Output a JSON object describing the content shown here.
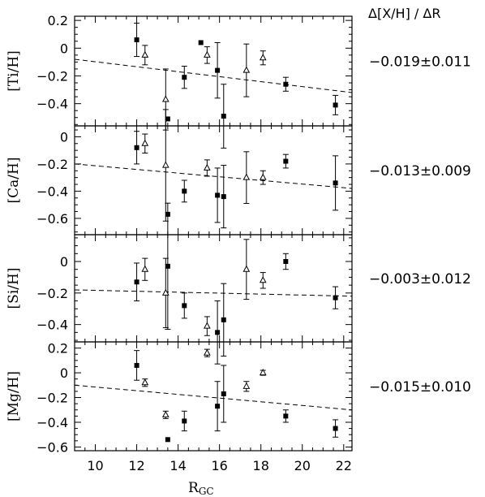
{
  "header": {
    "title": "Δ[X/H] / ΔR"
  },
  "xaxis": {
    "label_main": "R",
    "label_sub": "GC",
    "ticks": [
      "10",
      "12",
      "14",
      "16",
      "18",
      "20",
      "22"
    ]
  },
  "chart_data": [
    {
      "type": "scatter",
      "ylabel": "[Ti/H]",
      "slope_label": "−0.019±0.011",
      "xlim": [
        9,
        22.4
      ],
      "ylim": [
        -0.56,
        0.23
      ],
      "yticks": [
        0.2,
        0,
        -0.2,
        -0.4
      ],
      "ytick_labels": [
        "0.2",
        "0",
        "−0.2",
        "−0.4"
      ],
      "fit": {
        "x": [
          9,
          22.4
        ],
        "y": [
          -0.08,
          -0.32
        ]
      },
      "series": [
        {
          "marker": "filled-square",
          "points": [
            {
              "x": 12.0,
              "y": 0.06,
              "err": 0.12
            },
            {
              "x": 13.5,
              "y": -0.51,
              "err": 0
            },
            {
              "x": 14.3,
              "y": -0.21,
              "err": 0.08
            },
            {
              "x": 15.1,
              "y": 0.04,
              "err": 0
            },
            {
              "x": 15.9,
              "y": -0.16,
              "err": 0.2
            },
            {
              "x": 16.2,
              "y": -0.49,
              "err": 0.23
            },
            {
              "x": 19.2,
              "y": -0.26,
              "err": 0.05
            },
            {
              "x": 21.6,
              "y": -0.41,
              "err": 0.07
            }
          ]
        },
        {
          "marker": "open-triangle",
          "points": [
            {
              "x": 12.4,
              "y": -0.05,
              "err": 0.07
            },
            {
              "x": 13.4,
              "y": -0.37,
              "err": 0.22
            },
            {
              "x": 15.4,
              "y": -0.05,
              "err": 0.06
            },
            {
              "x": 17.3,
              "y": -0.16,
              "err": 0.19
            },
            {
              "x": 18.1,
              "y": -0.07,
              "err": 0.05
            }
          ]
        }
      ]
    },
    {
      "type": "scatter",
      "ylabel": "[Ca/H]",
      "slope_label": "−0.013±0.009",
      "xlim": [
        9,
        22.4
      ],
      "ylim": [
        -0.72,
        0.08
      ],
      "yticks": [
        0,
        -0.2,
        -0.4,
        -0.6
      ],
      "ytick_labels": [
        "0",
        "−0.2",
        "−0.4",
        "−0.6"
      ],
      "fit": {
        "x": [
          9,
          22.4
        ],
        "y": [
          -0.2,
          -0.38
        ]
      },
      "series": [
        {
          "marker": "filled-square",
          "points": [
            {
              "x": 12.0,
              "y": -0.08,
              "err": 0.12
            },
            {
              "x": 13.5,
              "y": -0.57,
              "err": 0
            },
            {
              "x": 14.3,
              "y": -0.4,
              "err": 0.08
            },
            {
              "x": 15.9,
              "y": -0.43,
              "err": 0.2
            },
            {
              "x": 16.2,
              "y": -0.44,
              "err": 0.23
            },
            {
              "x": 19.2,
              "y": -0.18,
              "err": 0.05
            },
            {
              "x": 21.6,
              "y": -0.34,
              "err": 0.2
            }
          ]
        },
        {
          "marker": "open-triangle",
          "points": [
            {
              "x": 12.4,
              "y": -0.05,
              "err": 0.07
            },
            {
              "x": 13.4,
              "y": -0.21,
              "err": 0.41
            },
            {
              "x": 15.4,
              "y": -0.23,
              "err": 0.06
            },
            {
              "x": 17.3,
              "y": -0.3,
              "err": 0.19
            },
            {
              "x": 18.1,
              "y": -0.3,
              "err": 0.05
            }
          ]
        }
      ]
    },
    {
      "type": "scatter",
      "ylabel": "[Si/H]",
      "slope_label": "−0.003±0.012",
      "xlim": [
        9,
        22.4
      ],
      "ylim": [
        -0.51,
        0.17
      ],
      "yticks": [
        0,
        -0.2,
        -0.4
      ],
      "ytick_labels": [
        "0",
        "−0.2",
        "−0.4"
      ],
      "fit": {
        "x": [
          9,
          22.4
        ],
        "y": [
          -0.18,
          -0.22
        ]
      },
      "series": [
        {
          "marker": "filled-square",
          "points": [
            {
              "x": 12.0,
              "y": -0.13,
              "err": 0.12
            },
            {
              "x": 13.5,
              "y": -0.03,
              "err": 0.4
            },
            {
              "x": 14.3,
              "y": -0.28,
              "err": 0.08
            },
            {
              "x": 15.9,
              "y": -0.45,
              "err": 0.2
            },
            {
              "x": 16.2,
              "y": -0.37,
              "err": 0.23
            },
            {
              "x": 19.2,
              "y": 0.0,
              "err": 0.05
            },
            {
              "x": 21.6,
              "y": -0.23,
              "err": 0.07
            }
          ]
        },
        {
          "marker": "open-triangle",
          "points": [
            {
              "x": 12.4,
              "y": -0.05,
              "err": 0.07
            },
            {
              "x": 13.4,
              "y": -0.2,
              "err": 0.22
            },
            {
              "x": 15.4,
              "y": -0.41,
              "err": 0.06
            },
            {
              "x": 17.3,
              "y": -0.05,
              "err": 0.19
            },
            {
              "x": 18.1,
              "y": -0.12,
              "err": 0.05
            }
          ]
        }
      ]
    },
    {
      "type": "scatter",
      "ylabel": "[Mg/H]",
      "slope_label": "−0.015±0.010",
      "xlim": [
        9,
        22.4
      ],
      "ylim": [
        -0.63,
        0.25
      ],
      "yticks": [
        0.2,
        0,
        -0.2,
        -0.4,
        -0.6
      ],
      "ytick_labels": [
        "0.2",
        "0",
        "−0.2",
        "−0.4",
        "−0.6"
      ],
      "fit": {
        "x": [
          9,
          22.4
        ],
        "y": [
          -0.1,
          -0.3
        ]
      },
      "series": [
        {
          "marker": "filled-square",
          "points": [
            {
              "x": 12.0,
              "y": 0.06,
              "err": 0.12
            },
            {
              "x": 13.5,
              "y": -0.54,
              "err": 0
            },
            {
              "x": 14.3,
              "y": -0.39,
              "err": 0.08
            },
            {
              "x": 15.9,
              "y": -0.27,
              "err": 0.2
            },
            {
              "x": 16.2,
              "y": -0.17,
              "err": 0.23
            },
            {
              "x": 19.2,
              "y": -0.35,
              "err": 0.05
            },
            {
              "x": 21.6,
              "y": -0.45,
              "err": 0.07
            }
          ]
        },
        {
          "marker": "open-triangle",
          "points": [
            {
              "x": 12.4,
              "y": -0.08,
              "err": 0.03
            },
            {
              "x": 13.4,
              "y": -0.34,
              "err": 0.03
            },
            {
              "x": 15.4,
              "y": 0.16,
              "err": 0.03
            },
            {
              "x": 17.3,
              "y": -0.11,
              "err": 0.04
            },
            {
              "x": 18.1,
              "y": 0.0,
              "err": 0.02
            }
          ]
        }
      ]
    }
  ]
}
